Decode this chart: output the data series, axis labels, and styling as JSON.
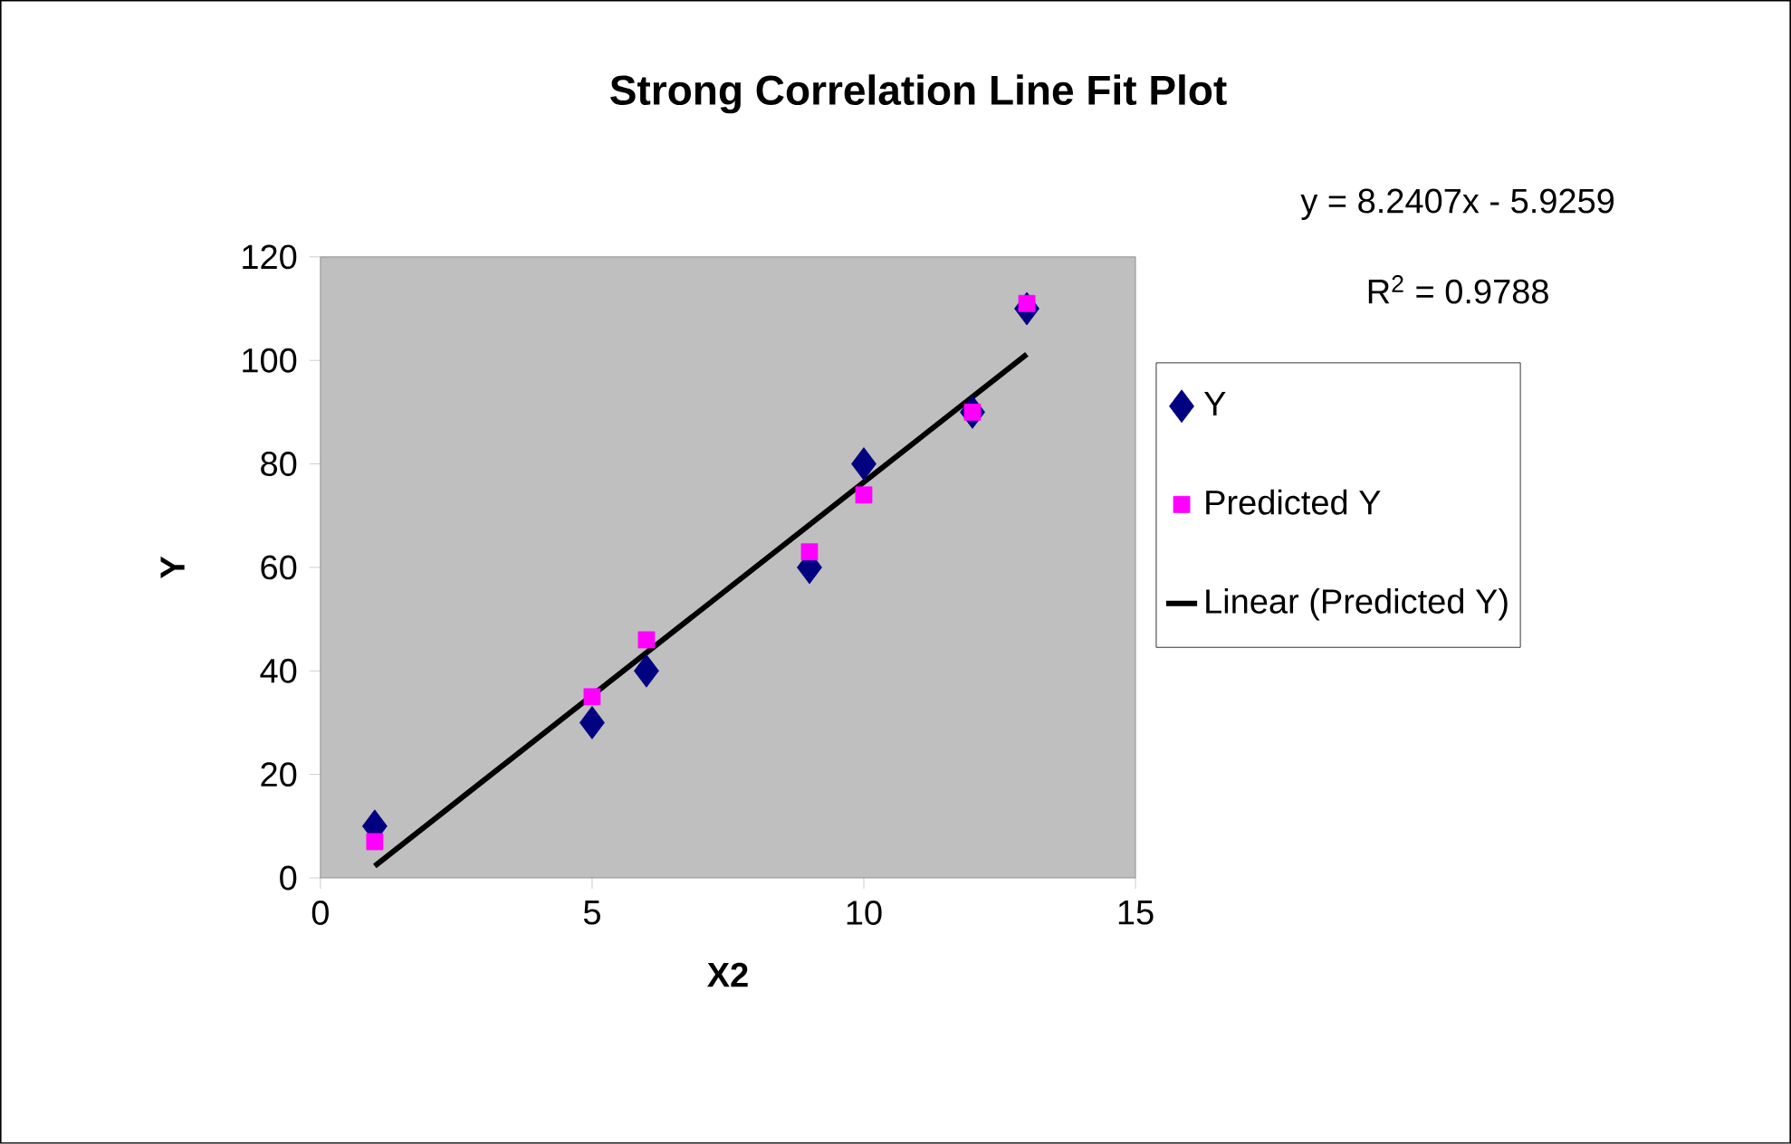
{
  "chart_data": {
    "type": "scatter",
    "title": "Strong Correlation Line Fit Plot",
    "xlabel": "X2",
    "ylabel": "Y",
    "xlim": [
      0,
      15
    ],
    "xticks": [
      0,
      5,
      10,
      15
    ],
    "ylim": [
      0,
      120
    ],
    "yticks": [
      0,
      20,
      40,
      60,
      80,
      100,
      120
    ],
    "grid": false,
    "legend": "right",
    "annotations": [
      "y = 8.2407x - 5.9259",
      "R$^{2}$ = 0.9788"
    ],
    "x": [
      1,
      5,
      6,
      9,
      10,
      12,
      13
    ],
    "series": [
      {
        "name": "Y",
        "color": "#000080",
        "marker": "diamond",
        "values": [
          10,
          30,
          40,
          60,
          80,
          90,
          110
        ]
      },
      {
        "name": "Predicted Y",
        "color": "#ff00ff",
        "marker": "square",
        "values": [
          7,
          35,
          46,
          63,
          74,
          90,
          111
        ]
      },
      {
        "name": "Linear (Predicted Y)",
        "type": "line",
        "color": "#000000",
        "marker": "none",
        "line_style": "solid",
        "x": [
          1,
          13
        ],
        "values": [
          2.3,
          101.2
        ]
      }
    ]
  }
}
